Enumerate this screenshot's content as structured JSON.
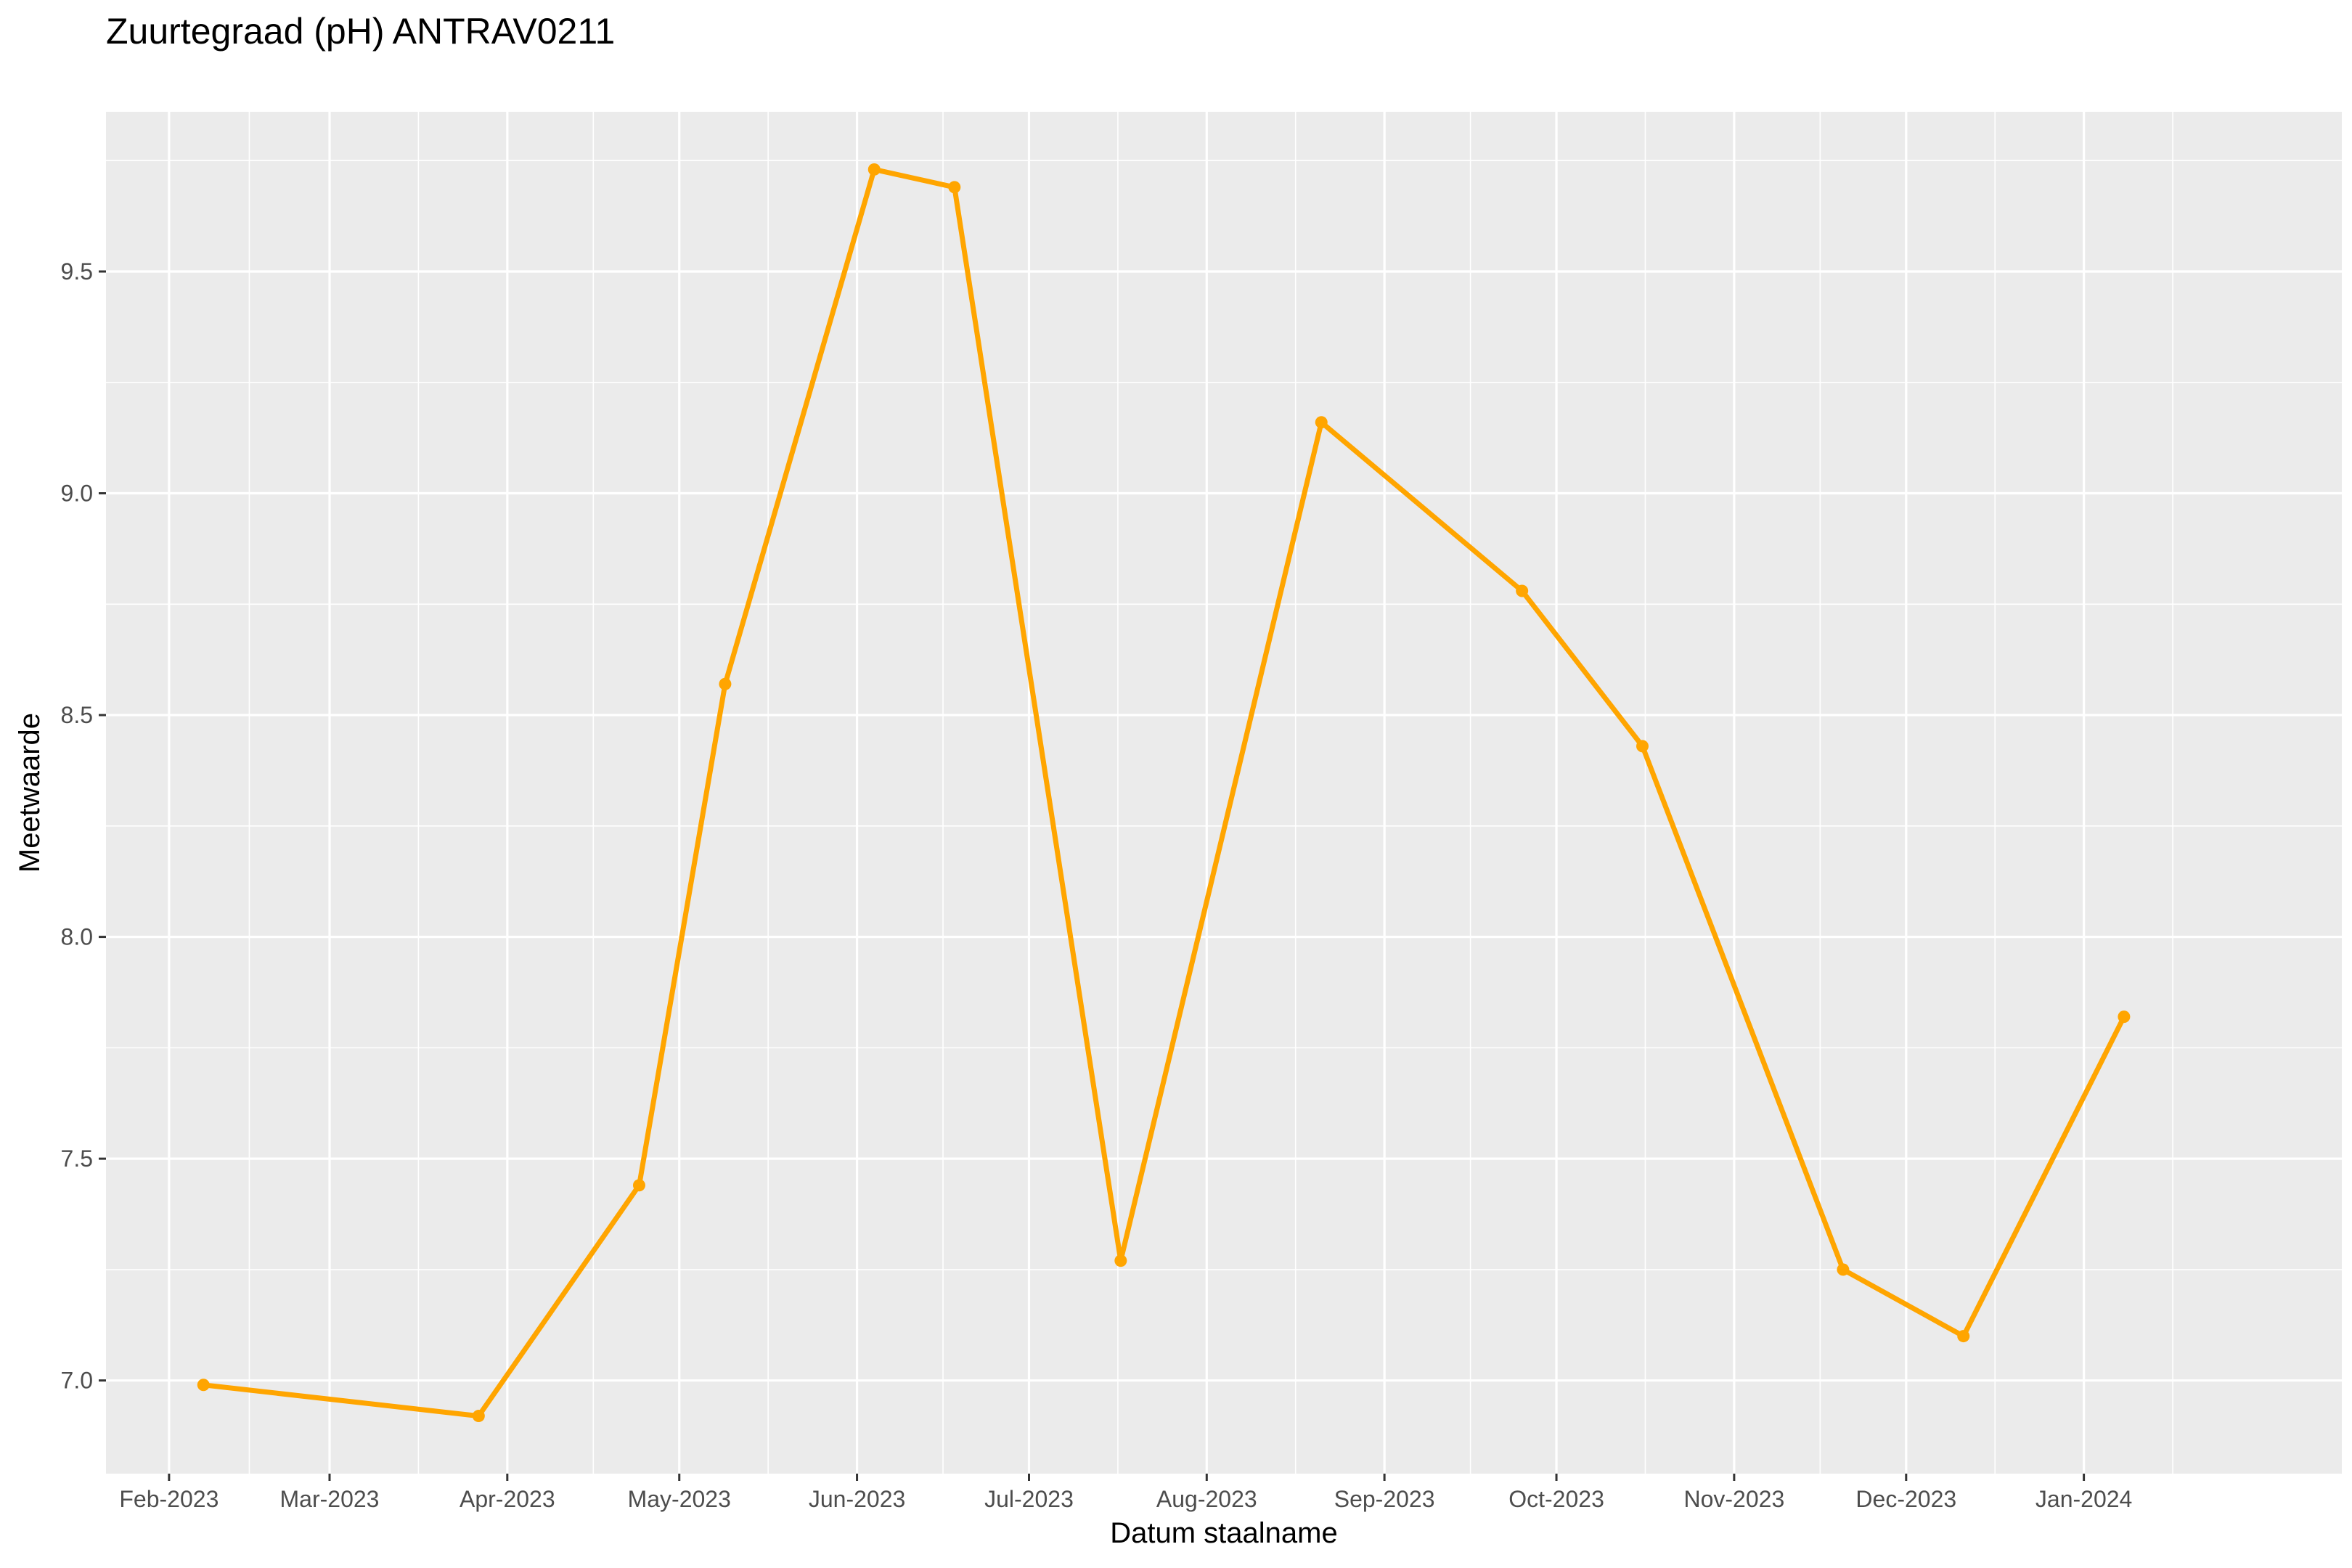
{
  "chart_data": {
    "type": "line",
    "title": "Zuurtegraad (pH) ANTRAV0211",
    "xlabel": "Datum staalname",
    "ylabel": "Meetwaarde",
    "x_tick_labels": [
      "Feb-2023",
      "Mar-2023",
      "Apr-2023",
      "May-2023",
      "Jun-2023",
      "Jul-2023",
      "Aug-2023",
      "Sep-2023",
      "Oct-2023",
      "Nov-2023",
      "Dec-2023",
      "Jan-2024"
    ],
    "x_ticks": [
      "2023-02-01",
      "2023-03-01",
      "2023-04-01",
      "2023-05-01",
      "2023-06-01",
      "2023-07-01",
      "2023-08-01",
      "2023-09-01",
      "2023-10-01",
      "2023-11-01",
      "2023-12-01",
      "2024-01-01"
    ],
    "y_tick_labels": [
      "7.0",
      "7.5",
      "8.0",
      "8.5",
      "9.0",
      "9.5"
    ],
    "y_ticks": [
      7.0,
      7.5,
      8.0,
      8.5,
      9.0,
      9.5
    ],
    "xlim": [
      "2023-01-21",
      "2024-02-15"
    ],
    "ylim": [
      6.79,
      9.86
    ],
    "grid": true,
    "line_color": "#FFA500",
    "panel_background": "#EBEBEB",
    "grid_color": "#FFFFFF",
    "series": [
      {
        "x": [
          "2023-02-07",
          "2023-03-27",
          "2023-04-24",
          "2023-05-09",
          "2023-06-04",
          "2023-06-18",
          "2023-07-17",
          "2023-08-21",
          "2023-09-25",
          "2023-10-16",
          "2023-11-20",
          "2023-12-11",
          "2024-01-08"
        ],
        "values": [
          6.99,
          6.92,
          7.44,
          8.57,
          9.73,
          9.69,
          7.27,
          9.16,
          8.78,
          8.43,
          7.25,
          7.1,
          7.82
        ]
      }
    ]
  }
}
